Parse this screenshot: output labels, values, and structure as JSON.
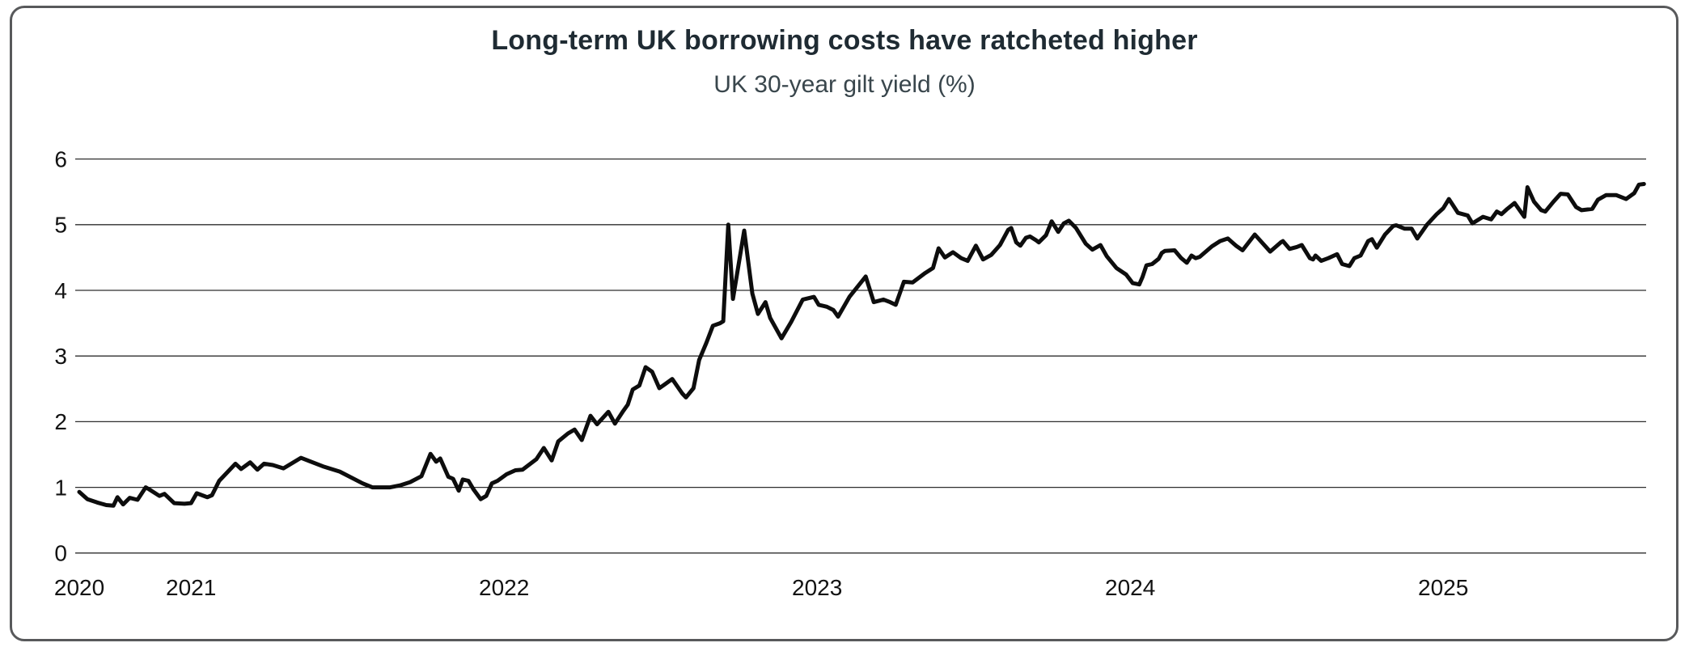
{
  "colors": {
    "card_border": "#58595b",
    "grid": "#2e2e2e",
    "title_text": "#1f2b33",
    "subtitle_text": "#39464c",
    "tick_text": "#121212",
    "line": "#0d0d0d",
    "background": "#ffffff"
  },
  "chart_data": {
    "type": "line",
    "title": "Long-term UK borrowing costs have ratcheted higher",
    "subtitle": "UK 30-year gilt yield (%)",
    "xlabel": "",
    "ylabel": "",
    "ylim": [
      0,
      6
    ],
    "xlim": [
      2020.63,
      2025.65
    ],
    "grid": "horizontal",
    "legend": "none",
    "y_ticks": [
      0,
      1,
      2,
      3,
      4,
      5,
      6
    ],
    "x_ticks": [
      {
        "label": "2020",
        "t": 2020.643
      },
      {
        "label": "2021",
        "t": 2021.0
      },
      {
        "label": "2022",
        "t": 2022.0
      },
      {
        "label": "2023",
        "t": 2023.0
      },
      {
        "label": "2024",
        "t": 2024.0
      },
      {
        "label": "2025",
        "t": 2025.0
      }
    ],
    "series": [
      {
        "name": "UK 30-year gilt yield (%)",
        "points": [
          [
            2020.643,
            0.93
          ],
          [
            2020.669,
            0.82
          ],
          [
            2020.7,
            0.77
          ],
          [
            2020.729,
            0.73
          ],
          [
            2020.752,
            0.72
          ],
          [
            2020.765,
            0.85
          ],
          [
            2020.783,
            0.74
          ],
          [
            2020.804,
            0.84
          ],
          [
            2020.829,
            0.81
          ],
          [
            2020.855,
            1.0
          ],
          [
            2020.866,
            0.97
          ],
          [
            2020.899,
            0.87
          ],
          [
            2020.915,
            0.9
          ],
          [
            2020.946,
            0.76
          ],
          [
            2020.979,
            0.75
          ],
          [
            2021.0,
            0.76
          ],
          [
            2021.018,
            0.91
          ],
          [
            2021.052,
            0.85
          ],
          [
            2021.067,
            0.88
          ],
          [
            2021.09,
            1.1
          ],
          [
            2021.142,
            1.36
          ],
          [
            2021.16,
            1.28
          ],
          [
            2021.189,
            1.38
          ],
          [
            2021.212,
            1.27
          ],
          [
            2021.233,
            1.36
          ],
          [
            2021.261,
            1.34
          ],
          [
            2021.295,
            1.29
          ],
          [
            2021.351,
            1.45
          ],
          [
            2021.421,
            1.32
          ],
          [
            2021.475,
            1.24
          ],
          [
            2021.548,
            1.06
          ],
          [
            2021.579,
            1.0
          ],
          [
            2021.636,
            1.0
          ],
          [
            2021.667,
            1.03
          ],
          [
            2021.7,
            1.08
          ],
          [
            2021.736,
            1.17
          ],
          [
            2021.765,
            1.51
          ],
          [
            2021.783,
            1.39
          ],
          [
            2021.796,
            1.44
          ],
          [
            2021.822,
            1.16
          ],
          [
            2021.837,
            1.13
          ],
          [
            2021.855,
            0.95
          ],
          [
            2021.868,
            1.12
          ],
          [
            2021.886,
            1.1
          ],
          [
            2021.902,
            0.97
          ],
          [
            2021.925,
            0.82
          ],
          [
            2021.943,
            0.87
          ],
          [
            2021.961,
            1.06
          ],
          [
            2021.979,
            1.1
          ],
          [
            2022.008,
            1.2
          ],
          [
            2022.036,
            1.26
          ],
          [
            2022.059,
            1.27
          ],
          [
            2022.103,
            1.43
          ],
          [
            2022.127,
            1.6
          ],
          [
            2022.152,
            1.41
          ],
          [
            2022.173,
            1.7
          ],
          [
            2022.204,
            1.82
          ],
          [
            2022.225,
            1.88
          ],
          [
            2022.248,
            1.72
          ],
          [
            2022.276,
            2.09
          ],
          [
            2022.297,
            1.96
          ],
          [
            2022.333,
            2.15
          ],
          [
            2022.354,
            1.97
          ],
          [
            2022.38,
            2.16
          ],
          [
            2022.395,
            2.26
          ],
          [
            2022.411,
            2.49
          ],
          [
            2022.432,
            2.55
          ],
          [
            2022.452,
            2.83
          ],
          [
            2022.473,
            2.76
          ],
          [
            2022.496,
            2.51
          ],
          [
            2022.514,
            2.57
          ],
          [
            2022.537,
            2.65
          ],
          [
            2022.569,
            2.43
          ],
          [
            2022.581,
            2.37
          ],
          [
            2022.605,
            2.51
          ],
          [
            2022.623,
            2.94
          ],
          [
            2022.646,
            3.2
          ],
          [
            2022.667,
            3.46
          ],
          [
            2022.69,
            3.5
          ],
          [
            2022.7,
            3.53
          ],
          [
            2022.716,
            5.0
          ],
          [
            2022.731,
            3.87
          ],
          [
            2022.767,
            4.91
          ],
          [
            2022.793,
            3.95
          ],
          [
            2022.811,
            3.64
          ],
          [
            2022.835,
            3.82
          ],
          [
            2022.85,
            3.58
          ],
          [
            2022.886,
            3.27
          ],
          [
            2022.917,
            3.52
          ],
          [
            2022.954,
            3.86
          ],
          [
            2022.99,
            3.9
          ],
          [
            2023.005,
            3.78
          ],
          [
            2023.031,
            3.75
          ],
          [
            2023.052,
            3.7
          ],
          [
            2023.067,
            3.6
          ],
          [
            2023.103,
            3.9
          ],
          [
            2023.155,
            4.21
          ],
          [
            2023.181,
            3.82
          ],
          [
            2023.212,
            3.86
          ],
          [
            2023.233,
            3.82
          ],
          [
            2023.251,
            3.78
          ],
          [
            2023.277,
            4.13
          ],
          [
            2023.305,
            4.12
          ],
          [
            2023.344,
            4.26
          ],
          [
            2023.37,
            4.34
          ],
          [
            2023.388,
            4.64
          ],
          [
            2023.408,
            4.5
          ],
          [
            2023.434,
            4.58
          ],
          [
            2023.46,
            4.49
          ],
          [
            2023.481,
            4.45
          ],
          [
            2023.507,
            4.68
          ],
          [
            2023.53,
            4.47
          ],
          [
            2023.556,
            4.54
          ],
          [
            2023.584,
            4.69
          ],
          [
            2023.61,
            4.92
          ],
          [
            2023.62,
            4.95
          ],
          [
            2023.636,
            4.73
          ],
          [
            2023.649,
            4.68
          ],
          [
            2023.667,
            4.8
          ],
          [
            2023.68,
            4.82
          ],
          [
            2023.7,
            4.76
          ],
          [
            2023.708,
            4.73
          ],
          [
            2023.731,
            4.84
          ],
          [
            2023.749,
            5.05
          ],
          [
            2023.77,
            4.89
          ],
          [
            2023.788,
            5.02
          ],
          [
            2023.804,
            5.06
          ],
          [
            2023.827,
            4.95
          ],
          [
            2023.858,
            4.71
          ],
          [
            2023.879,
            4.62
          ],
          [
            2023.905,
            4.69
          ],
          [
            2023.925,
            4.52
          ],
          [
            2023.956,
            4.34
          ],
          [
            2023.987,
            4.24
          ],
          [
            2024.008,
            4.11
          ],
          [
            2024.029,
            4.09
          ],
          [
            2024.039,
            4.2
          ],
          [
            2024.052,
            4.38
          ],
          [
            2024.07,
            4.4
          ],
          [
            2024.091,
            4.48
          ],
          [
            2024.101,
            4.57
          ],
          [
            2024.111,
            4.6
          ],
          [
            2024.142,
            4.61
          ],
          [
            2024.163,
            4.49
          ],
          [
            2024.181,
            4.42
          ],
          [
            2024.196,
            4.53
          ],
          [
            2024.209,
            4.49
          ],
          [
            2024.222,
            4.51
          ],
          [
            2024.261,
            4.67
          ],
          [
            2024.287,
            4.75
          ],
          [
            2024.312,
            4.79
          ],
          [
            2024.338,
            4.68
          ],
          [
            2024.359,
            4.61
          ],
          [
            2024.398,
            4.85
          ],
          [
            2024.447,
            4.59
          ],
          [
            2024.481,
            4.73
          ],
          [
            2024.488,
            4.75
          ],
          [
            2024.509,
            4.63
          ],
          [
            2024.532,
            4.66
          ],
          [
            2024.548,
            4.69
          ],
          [
            2024.574,
            4.49
          ],
          [
            2024.584,
            4.47
          ],
          [
            2024.592,
            4.53
          ],
          [
            2024.61,
            4.45
          ],
          [
            2024.633,
            4.49
          ],
          [
            2024.661,
            4.55
          ],
          [
            2024.677,
            4.4
          ],
          [
            2024.7,
            4.37
          ],
          [
            2024.716,
            4.49
          ],
          [
            2024.736,
            4.53
          ],
          [
            2024.76,
            4.75
          ],
          [
            2024.772,
            4.78
          ],
          [
            2024.788,
            4.65
          ],
          [
            2024.814,
            4.85
          ],
          [
            2024.84,
            4.98
          ],
          [
            2024.85,
            4.99
          ],
          [
            2024.876,
            4.94
          ],
          [
            2024.899,
            4.94
          ],
          [
            2024.917,
            4.79
          ],
          [
            2024.948,
            5.0
          ],
          [
            2024.979,
            5.16
          ],
          [
            2025.0,
            5.25
          ],
          [
            2025.018,
            5.39
          ],
          [
            2025.047,
            5.18
          ],
          [
            2025.078,
            5.14
          ],
          [
            2025.093,
            5.02
          ],
          [
            2025.127,
            5.12
          ],
          [
            2025.153,
            5.08
          ],
          [
            2025.171,
            5.2
          ],
          [
            2025.186,
            5.16
          ],
          [
            2025.202,
            5.23
          ],
          [
            2025.228,
            5.33
          ],
          [
            2025.259,
            5.12
          ],
          [
            2025.269,
            5.57
          ],
          [
            2025.29,
            5.35
          ],
          [
            2025.313,
            5.22
          ],
          [
            2025.326,
            5.2
          ],
          [
            2025.352,
            5.35
          ],
          [
            2025.375,
            5.47
          ],
          [
            2025.398,
            5.46
          ],
          [
            2025.424,
            5.27
          ],
          [
            2025.442,
            5.22
          ],
          [
            2025.476,
            5.24
          ],
          [
            2025.494,
            5.38
          ],
          [
            2025.52,
            5.45
          ],
          [
            2025.553,
            5.45
          ],
          [
            2025.584,
            5.39
          ],
          [
            2025.61,
            5.48
          ],
          [
            2025.625,
            5.61
          ],
          [
            2025.641,
            5.62
          ]
        ]
      }
    ]
  }
}
